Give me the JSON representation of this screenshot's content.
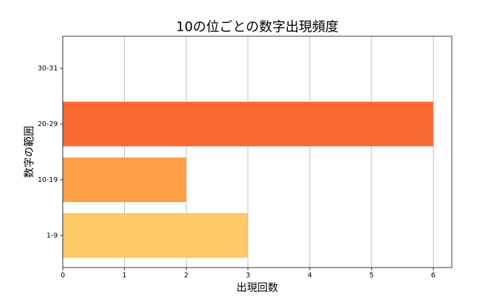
{
  "chart_data": {
    "type": "barh",
    "title": "10の位ごとの数字出現頻度",
    "x_label": "出現回数",
    "y_label": "数字の範囲",
    "categories": [
      "1-9",
      "10-19",
      "20-29",
      "30-31"
    ],
    "values": [
      3,
      2,
      6,
      0
    ],
    "colors": [
      "#fec966",
      "#fd9f47",
      "#fc6a33",
      "#e8372a"
    ],
    "xlim": [
      0,
      6.3
    ],
    "xticks": [
      0,
      1,
      2,
      3,
      4,
      5,
      6
    ],
    "grid": true
  }
}
